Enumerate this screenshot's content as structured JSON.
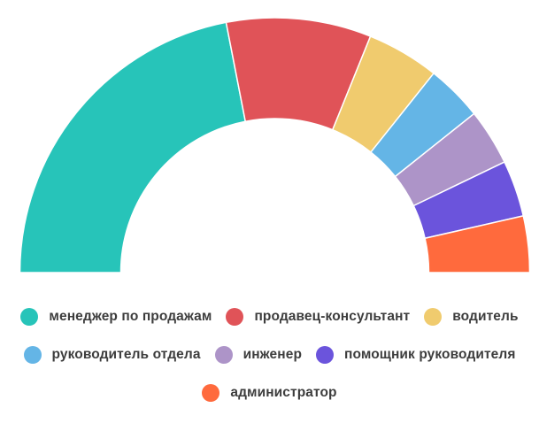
{
  "chart_data": {
    "type": "pie",
    "variant": "half-donut",
    "categories": [
      "менеджер по продажам",
      "продавец-консультант",
      "водитель",
      "руководитель отдела",
      "инженер",
      "помощник руководителя",
      "администратор"
    ],
    "values": [
      43,
      18,
      9,
      7,
      7,
      7,
      7
    ],
    "colors": [
      "#27c4b9",
      "#e05358",
      "#f0cb6e",
      "#64b5e6",
      "#ad94c8",
      "#6b54dc",
      "#ff6a3d"
    ],
    "legend_position": "bottom"
  }
}
